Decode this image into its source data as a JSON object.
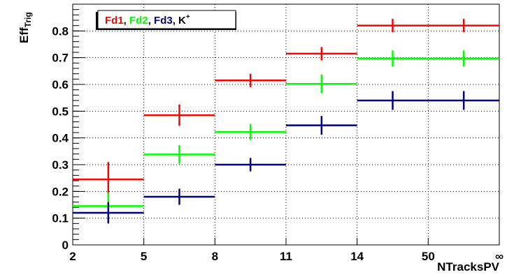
{
  "chart_data": {
    "type": "scatter",
    "xlabel": "NTracksPV",
    "ylabel_main": "Eff",
    "ylabel_sub": "Trig",
    "ylim": [
      0,
      0.9
    ],
    "grid": true,
    "legend_placement": "top-left",
    "x_tick_labels": [
      "2",
      "5",
      "8",
      "11",
      "14",
      "50",
      "∞"
    ],
    "y_tick_labels": [
      "0",
      "0.1",
      "0.2",
      "0.3",
      "0.4",
      "0.5",
      "0.6",
      "0.7",
      "0.8"
    ],
    "y_tick_values": [
      0,
      0.1,
      0.2,
      0.3,
      0.4,
      0.5,
      0.6,
      0.7,
      0.8
    ],
    "bins": [
      {
        "low": "2",
        "high": "5"
      },
      {
        "low": "5",
        "high": "8"
      },
      {
        "low": "8",
        "high": "11"
      },
      {
        "low": "11",
        "high": "14"
      },
      {
        "low": "14",
        "high": "50"
      },
      {
        "low": "50",
        "high": "∞"
      }
    ],
    "legend": {
      "separator": ", ",
      "kaon_base": "K",
      "kaon_sup": "+"
    },
    "series": [
      {
        "name": "Fd1",
        "color": "#ff0000",
        "values": [
          0.245,
          0.485,
          0.615,
          0.715,
          0.82,
          0.82
        ],
        "errors": [
          0.065,
          0.04,
          0.025,
          0.025,
          0.025,
          0.025
        ]
      },
      {
        "name": "Fd2",
        "color": "#00ff00",
        "values": [
          0.145,
          0.338,
          0.422,
          0.602,
          0.697,
          0.697
        ],
        "errors": [
          0.05,
          0.035,
          0.03,
          0.035,
          0.03,
          0.03
        ]
      },
      {
        "name": "Fd3",
        "color": "#00007f",
        "values": [
          0.12,
          0.18,
          0.3,
          0.447,
          0.54,
          0.54
        ],
        "errors": [
          0.04,
          0.03,
          0.025,
          0.035,
          0.035,
          0.035
        ]
      }
    ]
  }
}
